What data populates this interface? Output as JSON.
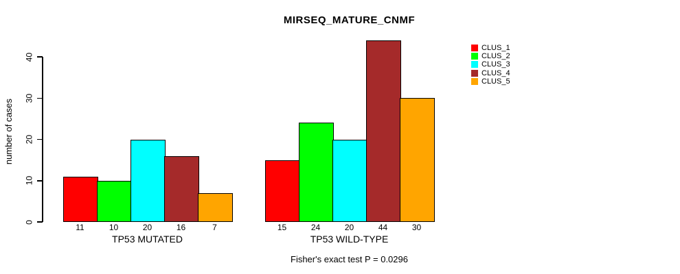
{
  "title": "MIRSEQ_MATURE_CNMF",
  "footer": "Fisher's exact test P = 0.0296",
  "chart_data": {
    "type": "bar",
    "title": "MIRSEQ_MATURE_CNMF",
    "xlabel": "",
    "ylabel": "number of cases",
    "categories": [
      "TP53 MUTATED",
      "TP53 WILD-TYPE"
    ],
    "series": [
      {
        "name": "CLUS_1",
        "color": "#FF0000",
        "values": [
          11,
          15
        ]
      },
      {
        "name": "CLUS_2",
        "color": "#00FF00",
        "values": [
          10,
          24
        ]
      },
      {
        "name": "CLUS_3",
        "color": "#00FFFF",
        "values": [
          20,
          20
        ]
      },
      {
        "name": "CLUS_4",
        "color": "#A52A2A",
        "values": [
          16,
          44
        ]
      },
      {
        "name": "CLUS_5",
        "color": "#FFA500",
        "values": [
          7,
          30
        ]
      }
    ],
    "yticks": [
      0,
      10,
      20,
      30,
      40
    ],
    "ylim": [
      0,
      44
    ],
    "grid": false,
    "bar_value_labels": true,
    "legend_position": "top-right",
    "annotation": "Fisher's exact test P = 0.0296"
  }
}
